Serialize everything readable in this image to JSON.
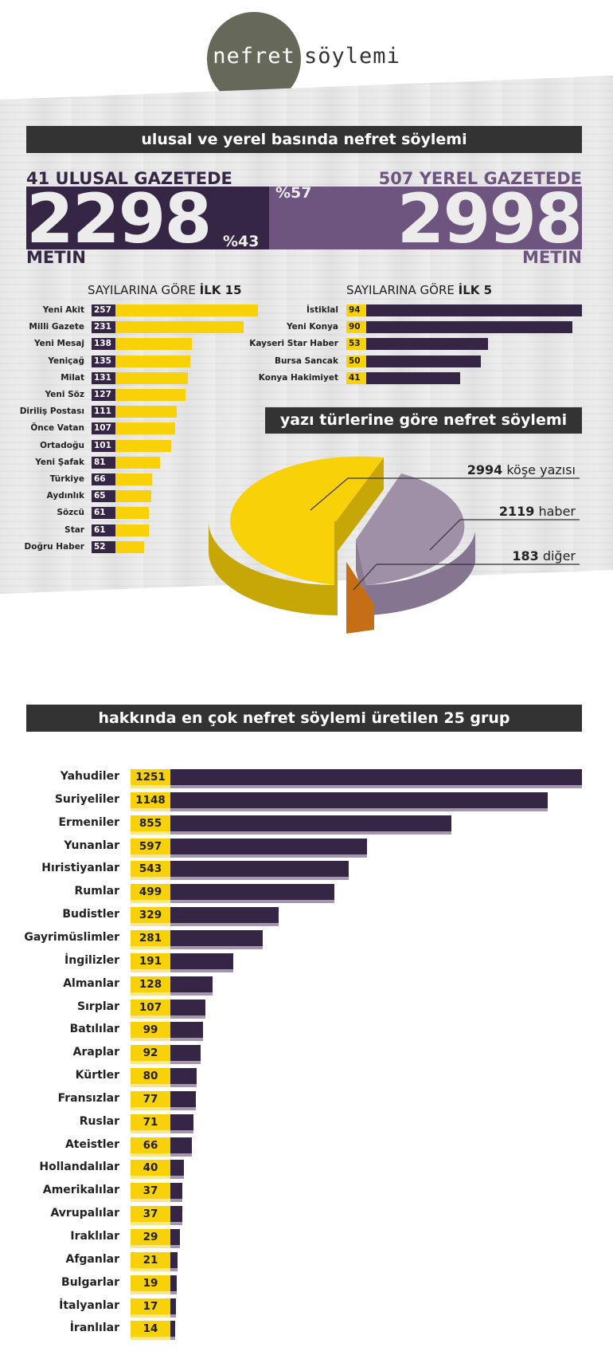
{
  "logo": {
    "word1": "nefret",
    "word2": "söylemi"
  },
  "section1": {
    "title": "ulusal ve yerel basında nefret söylemi",
    "left": {
      "heading": "41 ULUSAL GAZETEDE",
      "number": "2298",
      "unit": "METİN",
      "percent": "%43",
      "color": "#352646"
    },
    "right": {
      "heading": "507 YEREL GAZETEDE",
      "number": "2998",
      "unit": "METİN",
      "percent": "%57",
      "color": "#6e5580"
    }
  },
  "top15": {
    "title_prefix": "SAYILARINA GÖRE ",
    "title_bold": "İLK 15",
    "color_bar": "#f9d109",
    "color_value": "#352646"
  },
  "top5": {
    "title_prefix": "SAYILARINA GÖRE ",
    "title_bold": "İLK 5",
    "color_bar": "#352646",
    "color_value": "#f9d109"
  },
  "pie": {
    "title": "yazı türlerine göre nefret söylemi",
    "labels": [
      {
        "value": "2994",
        "text": " köşe yazısı"
      },
      {
        "value": "2119",
        "text": " haber"
      },
      {
        "value": "183",
        "text": " diğer"
      }
    ]
  },
  "groups": {
    "title": "hakkında en çok nefret söylemi üretilen 25 grup"
  },
  "chart_data": [
    {
      "type": "bar",
      "title": "SAYILARINA GÖRE İLK 15",
      "categories": [
        "Yeni Akit",
        "Milli Gazete",
        "Yeni Mesaj",
        "Yeniçağ",
        "Milat",
        "Yeni Söz",
        "Diriliş Postası",
        "Önce Vatan",
        "Ortadoğu",
        "Yeni Şafak",
        "Türkiye",
        "Aydınlık",
        "Sözcü",
        "Star",
        "Doğru Haber"
      ],
      "values": [
        257,
        231,
        138,
        135,
        131,
        127,
        111,
        107,
        101,
        81,
        66,
        65,
        61,
        61,
        52
      ]
    },
    {
      "type": "bar",
      "title": "SAYILARINA GÖRE İLK 5",
      "categories": [
        "İstiklal",
        "Yeni Konya",
        "Kayseri Star Haber",
        "Bursa Sancak",
        "Konya Hakimiyet"
      ],
      "values": [
        94,
        90,
        53,
        50,
        41
      ]
    },
    {
      "type": "pie",
      "title": "yazı türlerine göre nefret söylemi",
      "categories": [
        "köşe yazısı",
        "haber",
        "diğer"
      ],
      "values": [
        2994,
        2119,
        183
      ],
      "colors": [
        "#f9d109",
        "#9f90a8",
        "#e88f2c"
      ]
    },
    {
      "type": "bar",
      "title": "hakkında en çok nefret söylemi üretilen 25 grup",
      "categories": [
        "Yahudiler",
        "Suriyeliler",
        "Ermeniler",
        "Yunanlar",
        "Hıristiyanlar",
        "Rumlar",
        "Budistler",
        "Gayrimüslimler",
        "İngilizler",
        "Almanlar",
        "Sırplar",
        "Batılılar",
        "Araplar",
        "Kürtler",
        "Fransızlar",
        "Ruslar",
        "Ateistler",
        "Hollandalılar",
        "Amerikalılar",
        "Avrupalılar",
        "Iraklılar",
        "Afganlar",
        "Bulgarlar",
        "İtalyanlar",
        "İranlılar"
      ],
      "values": [
        1251,
        1148,
        855,
        597,
        543,
        499,
        329,
        281,
        191,
        128,
        107,
        99,
        92,
        80,
        77,
        71,
        66,
        40,
        37,
        37,
        29,
        21,
        19,
        17,
        14
      ]
    }
  ]
}
